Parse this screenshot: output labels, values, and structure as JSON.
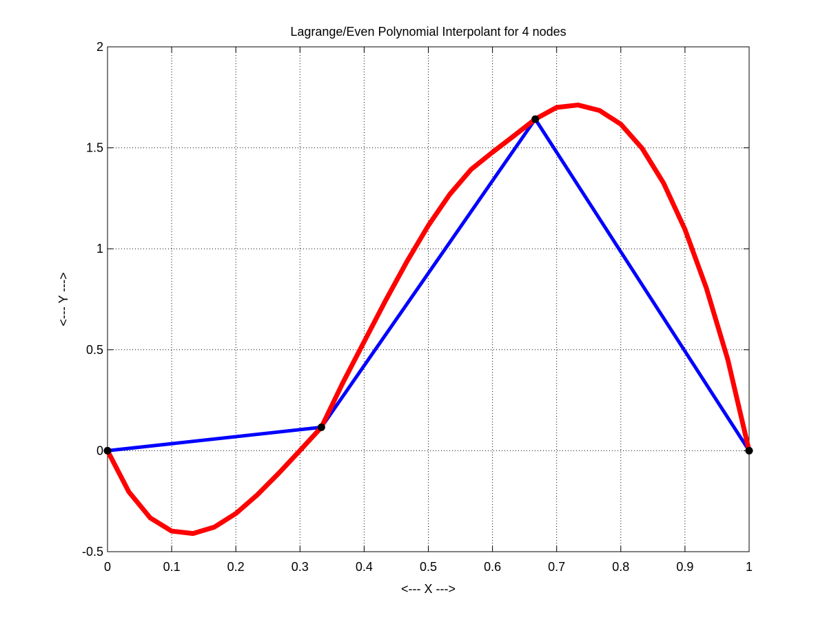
{
  "chart_data": {
    "type": "line",
    "title": "Lagrange/Even Polynomial Interpolant for 4 nodes",
    "xlabel": "<--- X --->",
    "ylabel": "<--- Y --->",
    "xlim": [
      0,
      1
    ],
    "ylim": [
      -0.5,
      2
    ],
    "grid": true,
    "x_ticks": [
      "0",
      "0.1",
      "0.2",
      "0.3",
      "0.4",
      "0.5",
      "0.6",
      "0.7",
      "0.8",
      "0.9",
      "1"
    ],
    "y_ticks": [
      "-0.5",
      "0",
      "0.5",
      "1",
      "1.5",
      "2"
    ],
    "series": [
      {
        "kind": "polynomial-interpolant",
        "color": "#ff0000",
        "x": [
          0,
          0.0333,
          0.0667,
          0.1,
          0.1333,
          0.1667,
          0.2,
          0.2333,
          0.2667,
          0.3,
          0.3333,
          0.3667,
          0.4,
          0.4333,
          0.4667,
          0.5,
          0.5333,
          0.5667,
          0.6,
          0.6333,
          0.6667,
          0.7,
          0.7333,
          0.7667,
          0.8,
          0.8333,
          0.8667,
          0.9,
          0.9333,
          0.9667,
          1
        ],
        "y": [
          0,
          -0.204,
          -0.333,
          -0.398,
          -0.41,
          -0.378,
          -0.311,
          -0.219,
          -0.112,
          0.001,
          0.116,
          0.336,
          0.54,
          0.743,
          0.937,
          1.115,
          1.269,
          1.393,
          1.478,
          1.559,
          1.642,
          1.7,
          1.712,
          1.685,
          1.617,
          1.497,
          1.325,
          1.096,
          0.806,
          0.452,
          0
        ]
      },
      {
        "kind": "piecewise-linear",
        "color": "#0000ff",
        "x": [
          0,
          0.3333,
          0.6667,
          1
        ],
        "y": [
          0,
          0.116,
          1.642,
          0
        ]
      }
    ],
    "nodes": {
      "color": "#000000",
      "x": [
        0,
        0.3333,
        0.6667,
        1
      ],
      "y": [
        0,
        0.116,
        1.642,
        0
      ]
    }
  }
}
